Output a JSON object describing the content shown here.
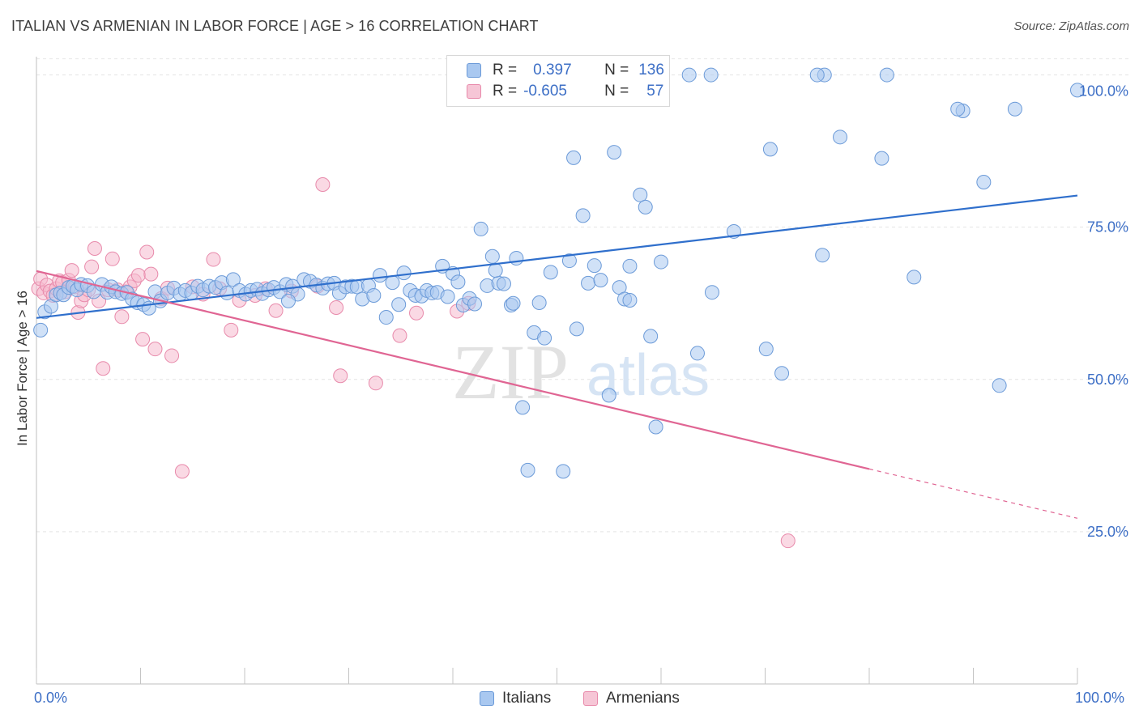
{
  "header": {
    "title": "ITALIAN VS ARMENIAN IN LABOR FORCE | AGE > 16 CORRELATION CHART",
    "source": "Source: ZipAtlas.com"
  },
  "watermark": {
    "zip": "ZIP",
    "atlas": "atlas"
  },
  "legend": {
    "italians": {
      "r_label": "R =",
      "r_value": "0.397",
      "n_label": "N =",
      "n_value": "136"
    },
    "armenians": {
      "r_label": "R =",
      "r_value": "-0.605",
      "n_label": "N =",
      "n_value": "57"
    }
  },
  "colors": {
    "italians_fill": "#a9c8f0",
    "italians_stroke": "#6b9ad8",
    "italians_line": "#2f6fcc",
    "armenians_fill": "#f6b9cd",
    "armenians_stroke": "#e88aab",
    "armenians_line": "#e06593",
    "tick_label": "#3d6fc6"
  },
  "chart_data": {
    "type": "scatter",
    "title": "ITALIAN VS ARMENIAN IN LABOR FORCE | AGE > 16 CORRELATION CHART",
    "ylabel": "In Labor Force | Age > 16",
    "xlabel": "",
    "xlim": [
      0,
      100
    ],
    "ylim": [
      0,
      103
    ],
    "x_tick_labels": [
      "0.0%",
      "100.0%"
    ],
    "y_ticks": [
      25,
      50,
      75,
      100
    ],
    "y_tick_labels": [
      "25.0%",
      "50.0%",
      "75.0%",
      "100.0%"
    ],
    "grid": "horizontal dashed",
    "legend_position": "bottom-center",
    "series": [
      {
        "name": "Italians",
        "r": 0.397,
        "n": 136,
        "trend": {
          "x": [
            0,
            100
          ],
          "y": [
            60.1,
            80.2
          ]
        },
        "points": [
          [
            0.4,
            58.1
          ],
          [
            0.8,
            61.1
          ],
          [
            1.4,
            62.0
          ],
          [
            1.9,
            63.9
          ],
          [
            2.3,
            64.2
          ],
          [
            2.6,
            63.9
          ],
          [
            3.1,
            65.1
          ],
          [
            3.5,
            65.3
          ],
          [
            3.9,
            64.7
          ],
          [
            4.3,
            65.6
          ],
          [
            4.9,
            65.4
          ],
          [
            5.5,
            64.4
          ],
          [
            6.3,
            65.6
          ],
          [
            6.8,
            64.3
          ],
          [
            7.2,
            65.2
          ],
          [
            7.6,
            64.4
          ],
          [
            8.2,
            64.1
          ],
          [
            8.7,
            64.3
          ],
          [
            9.2,
            63.2
          ],
          [
            9.7,
            62.6
          ],
          [
            10.3,
            62.3
          ],
          [
            10.8,
            61.7
          ],
          [
            11.4,
            64.4
          ],
          [
            11.9,
            62.9
          ],
          [
            12.6,
            64.2
          ],
          [
            13.2,
            65.0
          ],
          [
            13.8,
            64.0
          ],
          [
            14.3,
            64.6
          ],
          [
            14.9,
            64.2
          ],
          [
            15.5,
            65.3
          ],
          [
            16.0,
            64.7
          ],
          [
            16.6,
            65.3
          ],
          [
            17.2,
            65.1
          ],
          [
            17.8,
            65.9
          ],
          [
            18.3,
            64.2
          ],
          [
            18.9,
            66.4
          ],
          [
            19.5,
            64.6
          ],
          [
            20.1,
            64.0
          ],
          [
            20.6,
            64.6
          ],
          [
            21.2,
            64.8
          ],
          [
            21.7,
            64.1
          ],
          [
            22.3,
            64.7
          ],
          [
            22.8,
            65.1
          ],
          [
            23.4,
            64.4
          ],
          [
            24.0,
            65.6
          ],
          [
            24.6,
            65.3
          ],
          [
            25.1,
            64.0
          ],
          [
            25.7,
            66.4
          ],
          [
            26.3,
            66.1
          ],
          [
            26.9,
            65.5
          ],
          [
            27.5,
            65.0
          ],
          [
            28.0,
            65.7
          ],
          [
            28.6,
            65.8
          ],
          [
            29.1,
            64.2
          ],
          [
            29.7,
            65.2
          ],
          [
            30.3,
            65.3
          ],
          [
            30.8,
            65.2
          ],
          [
            31.3,
            63.2
          ],
          [
            31.9,
            65.4
          ],
          [
            32.4,
            63.8
          ],
          [
            33.0,
            67.1
          ],
          [
            33.6,
            60.2
          ],
          [
            34.2,
            65.9
          ],
          [
            34.8,
            62.3
          ],
          [
            35.3,
            67.5
          ],
          [
            35.9,
            64.6
          ],
          [
            36.4,
            63.8
          ],
          [
            37.0,
            63.7
          ],
          [
            37.5,
            64.6
          ],
          [
            38.0,
            64.2
          ],
          [
            38.5,
            64.3
          ],
          [
            39.0,
            68.6
          ],
          [
            39.5,
            63.6
          ],
          [
            40.0,
            67.4
          ],
          [
            40.5,
            66.0
          ],
          [
            41.0,
            62.2
          ],
          [
            41.6,
            63.3
          ],
          [
            42.1,
            62.4
          ],
          [
            42.7,
            74.7
          ],
          [
            43.3,
            65.4
          ],
          [
            43.8,
            70.2
          ],
          [
            44.4,
            65.8
          ],
          [
            44.9,
            65.7
          ],
          [
            45.6,
            62.2
          ],
          [
            46.1,
            69.9
          ],
          [
            46.7,
            45.4
          ],
          [
            47.2,
            35.1
          ],
          [
            47.8,
            57.7
          ],
          [
            48.3,
            62.6
          ],
          [
            48.8,
            56.8
          ],
          [
            49.4,
            67.6
          ],
          [
            50.3,
            100.0
          ],
          [
            50.6,
            34.9
          ],
          [
            51.2,
            69.5
          ],
          [
            51.6,
            86.4
          ],
          [
            51.9,
            58.3
          ],
          [
            52.5,
            76.9
          ],
          [
            53.0,
            65.8
          ],
          [
            53.6,
            68.7
          ],
          [
            54.2,
            66.3
          ],
          [
            55.0,
            47.4
          ],
          [
            55.5,
            87.3
          ],
          [
            56.0,
            65.1
          ],
          [
            56.5,
            63.2
          ],
          [
            57.0,
            68.6
          ],
          [
            57.5,
            100.0
          ],
          [
            58.0,
            80.3
          ],
          [
            58.5,
            78.3
          ],
          [
            59.0,
            57.1
          ],
          [
            59.5,
            42.2
          ],
          [
            60.0,
            69.3
          ],
          [
            62.7,
            100.0
          ],
          [
            63.5,
            54.3
          ],
          [
            64.8,
            100.0
          ],
          [
            64.9,
            64.3
          ],
          [
            67.0,
            74.3
          ],
          [
            70.1,
            55.0
          ],
          [
            70.5,
            87.8
          ],
          [
            71.6,
            51.0
          ],
          [
            75.5,
            70.4
          ],
          [
            75.7,
            100.0
          ],
          [
            77.2,
            89.8
          ],
          [
            81.2,
            86.3
          ],
          [
            81.7,
            100.0
          ],
          [
            84.3,
            66.8
          ],
          [
            89.0,
            94.1
          ],
          [
            91.0,
            82.4
          ],
          [
            92.5,
            49.0
          ],
          [
            94.0,
            94.4
          ],
          [
            100.0,
            97.5
          ],
          [
            88.5,
            94.4
          ],
          [
            75.0,
            100.0
          ],
          [
            57.0,
            63.0
          ],
          [
            44.1,
            67.9
          ],
          [
            45.8,
            62.5
          ],
          [
            24.2,
            62.9
          ]
        ]
      },
      {
        "name": "Armenians",
        "r": -0.605,
        "n": 57,
        "trend": {
          "x": [
            0,
            80
          ],
          "y": [
            67.8,
            35.3
          ]
        },
        "trend_dashed": {
          "x": [
            80,
            100
          ],
          "y": [
            35.3,
            27.2
          ]
        },
        "points": [
          [
            0.2,
            64.9
          ],
          [
            0.4,
            66.5
          ],
          [
            0.7,
            64.2
          ],
          [
            1.0,
            65.5
          ],
          [
            1.3,
            64.5
          ],
          [
            1.6,
            63.8
          ],
          [
            1.9,
            64.9
          ],
          [
            2.2,
            66.2
          ],
          [
            2.5,
            65.9
          ],
          [
            2.8,
            64.4
          ],
          [
            3.1,
            66.3
          ],
          [
            3.4,
            67.9
          ],
          [
            3.7,
            65.2
          ],
          [
            4.0,
            61.0
          ],
          [
            4.3,
            62.9
          ],
          [
            4.6,
            63.9
          ],
          [
            5.0,
            64.7
          ],
          [
            5.3,
            68.5
          ],
          [
            5.6,
            71.5
          ],
          [
            6.0,
            62.9
          ],
          [
            6.4,
            51.8
          ],
          [
            6.9,
            64.7
          ],
          [
            7.3,
            69.8
          ],
          [
            7.8,
            64.7
          ],
          [
            8.2,
            60.3
          ],
          [
            8.6,
            64.4
          ],
          [
            9.0,
            65.2
          ],
          [
            9.4,
            66.2
          ],
          [
            9.8,
            67.1
          ],
          [
            10.2,
            56.6
          ],
          [
            10.6,
            70.9
          ],
          [
            11.0,
            67.3
          ],
          [
            11.4,
            55.0
          ],
          [
            12.0,
            63.3
          ],
          [
            12.6,
            65.0
          ],
          [
            13.0,
            53.9
          ],
          [
            14.0,
            34.9
          ],
          [
            15.0,
            65.2
          ],
          [
            16.0,
            64.0
          ],
          [
            17.0,
            69.7
          ],
          [
            17.6,
            64.9
          ],
          [
            18.7,
            58.1
          ],
          [
            19.5,
            63.0
          ],
          [
            21.0,
            63.8
          ],
          [
            22.0,
            64.9
          ],
          [
            23.0,
            61.3
          ],
          [
            24.5,
            64.5
          ],
          [
            27.0,
            65.3
          ],
          [
            27.5,
            82.0
          ],
          [
            28.8,
            61.8
          ],
          [
            29.2,
            50.6
          ],
          [
            32.6,
            49.4
          ],
          [
            34.9,
            57.2
          ],
          [
            36.5,
            60.9
          ],
          [
            40.4,
            61.2
          ],
          [
            41.5,
            62.5
          ],
          [
            72.2,
            23.5
          ]
        ]
      }
    ]
  }
}
